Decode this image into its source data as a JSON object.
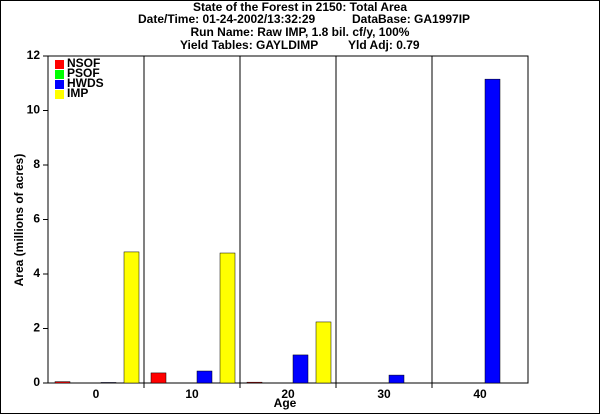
{
  "chart_data": {
    "type": "bar",
    "title": "State of the Forest in 2150: Total Area",
    "subtitles": [
      "Date/Time: 01-24-2002/13:32:29",
      "DataBase: GA1997IP",
      "Run Name: Raw IMP, 1.8 bil. cf/y, 100%",
      "Yield Tables: GAYLDIMP",
      "Yld Adj: 0.79"
    ],
    "x_label": "Age",
    "y_label": "Area (millions of acres)",
    "categories": [
      "0",
      "10",
      "20",
      "30",
      "40"
    ],
    "series": [
      {
        "name": "NSOF",
        "color": "#ff0000",
        "values": [
          0.05,
          0.37,
          0.03,
          0,
          0
        ]
      },
      {
        "name": "PSOF",
        "color": "#00ff00",
        "values": [
          0,
          0,
          0,
          0,
          0
        ]
      },
      {
        "name": "HWDS",
        "color": "#0000ff",
        "values": [
          0.02,
          0.44,
          1.03,
          0.29,
          11.15
        ]
      },
      {
        "name": "IMP",
        "color": "#ffff00",
        "values": [
          4.81,
          4.77,
          2.24,
          0,
          0
        ]
      }
    ],
    "ylim": [
      0,
      12
    ],
    "yticks": [
      0,
      2,
      4,
      6,
      8,
      10,
      12
    ],
    "legend": "top-left",
    "grid": "x"
  }
}
